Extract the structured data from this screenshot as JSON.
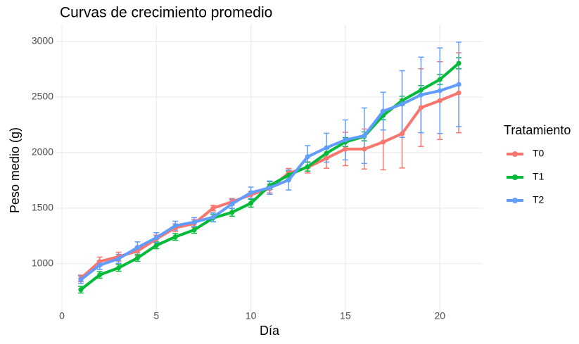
{
  "chart_data": {
    "type": "line",
    "title": "Curvas de crecimiento promedio",
    "x_label": "Día",
    "y_label": "Peso medio (g)",
    "legend_title": "Tratamiento",
    "legend_position": "right",
    "grid": true,
    "x": [
      1,
      2,
      3,
      4,
      5,
      6,
      7,
      8,
      9,
      10,
      11,
      12,
      13,
      14,
      15,
      16,
      17,
      18,
      19,
      20,
      21
    ],
    "xlim": [
      0,
      22
    ],
    "xticks": [
      0,
      5,
      10,
      15,
      20
    ],
    "ylim": [
      606,
      3114
    ],
    "yticks": [
      1000,
      1500,
      2000,
      2500,
      3000
    ],
    "series": [
      {
        "name": "T0",
        "color": "#F8766D",
        "values": [
          867,
          1019,
          1063,
          1114,
          1222,
          1323,
          1361,
          1500,
          1557,
          1620,
          1677,
          1817,
          1867,
          1949,
          2032,
          2032,
          2095,
          2171,
          2405,
          2468,
          2538
        ],
        "errors": [
          30,
          40,
          40,
          40,
          35,
          35,
          35,
          25,
          30,
          30,
          40,
          40,
          50,
          90,
          150,
          180,
          250,
          310,
          350,
          350,
          360
        ]
      },
      {
        "name": "T1",
        "color": "#00BA38",
        "values": [
          766,
          899,
          962,
          1051,
          1165,
          1241,
          1304,
          1411,
          1462,
          1544,
          1703,
          1797,
          1873,
          1994,
          2095,
          2146,
          2335,
          2468,
          2563,
          2658,
          2804
        ],
        "errors": [
          30,
          30,
          30,
          30,
          30,
          30,
          30,
          35,
          35,
          35,
          35,
          35,
          40,
          40,
          40,
          40,
          40,
          40,
          40,
          45,
          50
        ]
      },
      {
        "name": "T2",
        "color": "#619CFF",
        "values": [
          855,
          987,
          1044,
          1146,
          1234,
          1342,
          1374,
          1418,
          1538,
          1639,
          1684,
          1753,
          1962,
          2044,
          2114,
          2152,
          2373,
          2437,
          2519,
          2557,
          2614
        ],
        "errors": [
          35,
          40,
          40,
          50,
          45,
          40,
          40,
          40,
          40,
          50,
          60,
          90,
          100,
          130,
          180,
          250,
          170,
          300,
          340,
          385,
          380
        ]
      }
    ]
  }
}
